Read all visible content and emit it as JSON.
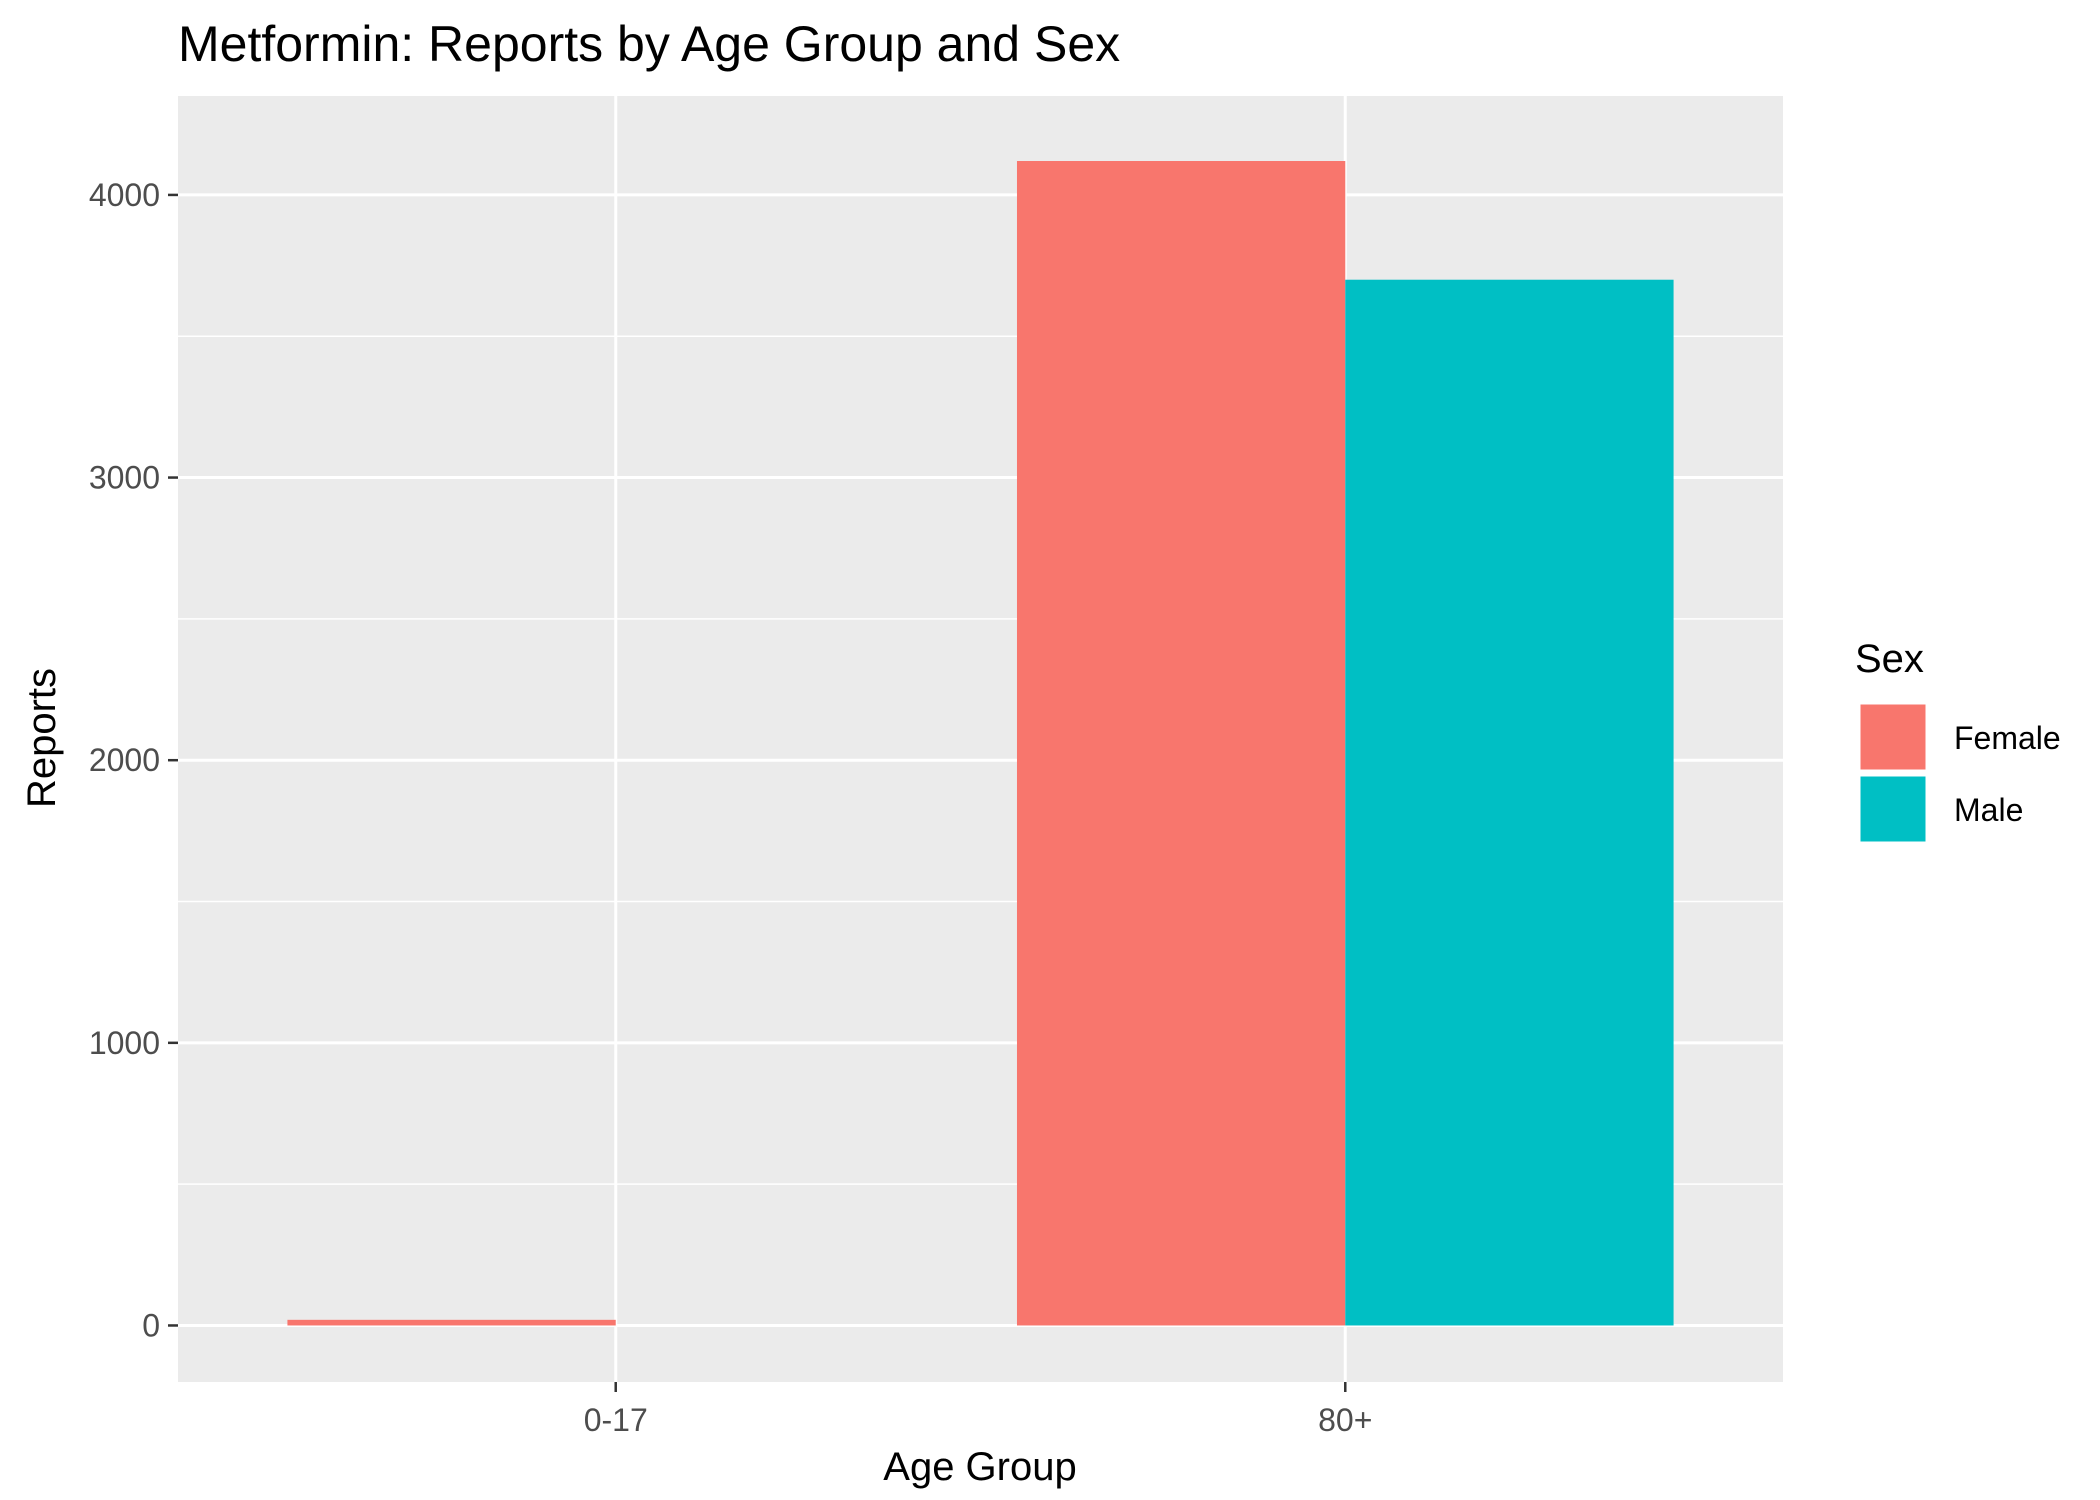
{
  "chart_data": {
    "type": "bar",
    "title": "Metformin: Reports by Age Group and Sex",
    "xlabel": "Age Group",
    "ylabel": "Reports",
    "categories": [
      "0-17",
      "80+"
    ],
    "series": [
      {
        "name": "Female",
        "color": "#F8766D",
        "values": [
          20,
          4120
        ]
      },
      {
        "name": "Male",
        "color": "#00BFC4",
        "values": [
          null,
          3700
        ]
      }
    ],
    "ylim": [
      -200,
      4350
    ],
    "yticks": [
      0,
      1000,
      2000,
      3000,
      4000
    ],
    "grid": true,
    "legend_title": "Sex",
    "legend_position": "right",
    "panel_background": "#EBEBEB",
    "gridline_color": "#FFFFFF"
  }
}
